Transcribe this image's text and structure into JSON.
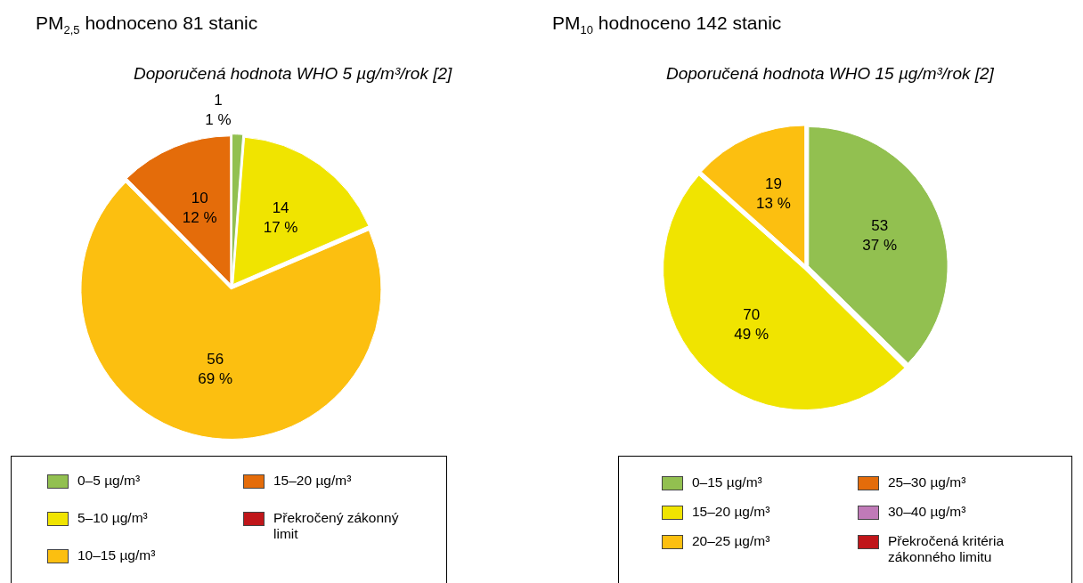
{
  "chart_data": [
    {
      "type": "pie",
      "title": "PM$_{2,5}$ hodnoceno 81 stanic",
      "subtitle": "Doporučená hodnota WHO 5 µg/m³/rok [2]",
      "categories": [
        "0–5 µg/m³",
        "5–10 µg/m³",
        "10–15 µg/m³",
        "15–20 µg/m³",
        "Překročený zákonný limit"
      ],
      "values": [
        1,
        14,
        56,
        10,
        0
      ],
      "colors": [
        "#92c050",
        "#f0e400",
        "#fcbf10",
        "#e46c0a",
        "#c0161a"
      ],
      "value_labels": [
        "1\n1 %",
        "14\n17 %",
        "56\n69 %",
        "10\n12 %",
        null
      ],
      "legend": "bottom"
    },
    {
      "type": "pie",
      "title": "PM$_{10}$ hodnoceno 142 stanic",
      "subtitle": "Doporučená hodnota WHO 15 µg/m³/rok [2]",
      "categories": [
        "0–15 µg/m³",
        "15–20 µg/m³",
        "20–25 µg/m³",
        "25–30 µg/m³",
        "30–40 µg/m³",
        "Překročená kritéria zákonného limitu"
      ],
      "values": [
        53,
        70,
        19,
        0,
        0,
        0
      ],
      "colors": [
        "#92c050",
        "#f0e400",
        "#fcbf10",
        "#e46c0a",
        "#c07ab8",
        "#c0161a"
      ],
      "value_labels": [
        "53\n37 %",
        "70\n49 %",
        "19\n13 %",
        null,
        null,
        null
      ],
      "legend": "bottom"
    }
  ]
}
